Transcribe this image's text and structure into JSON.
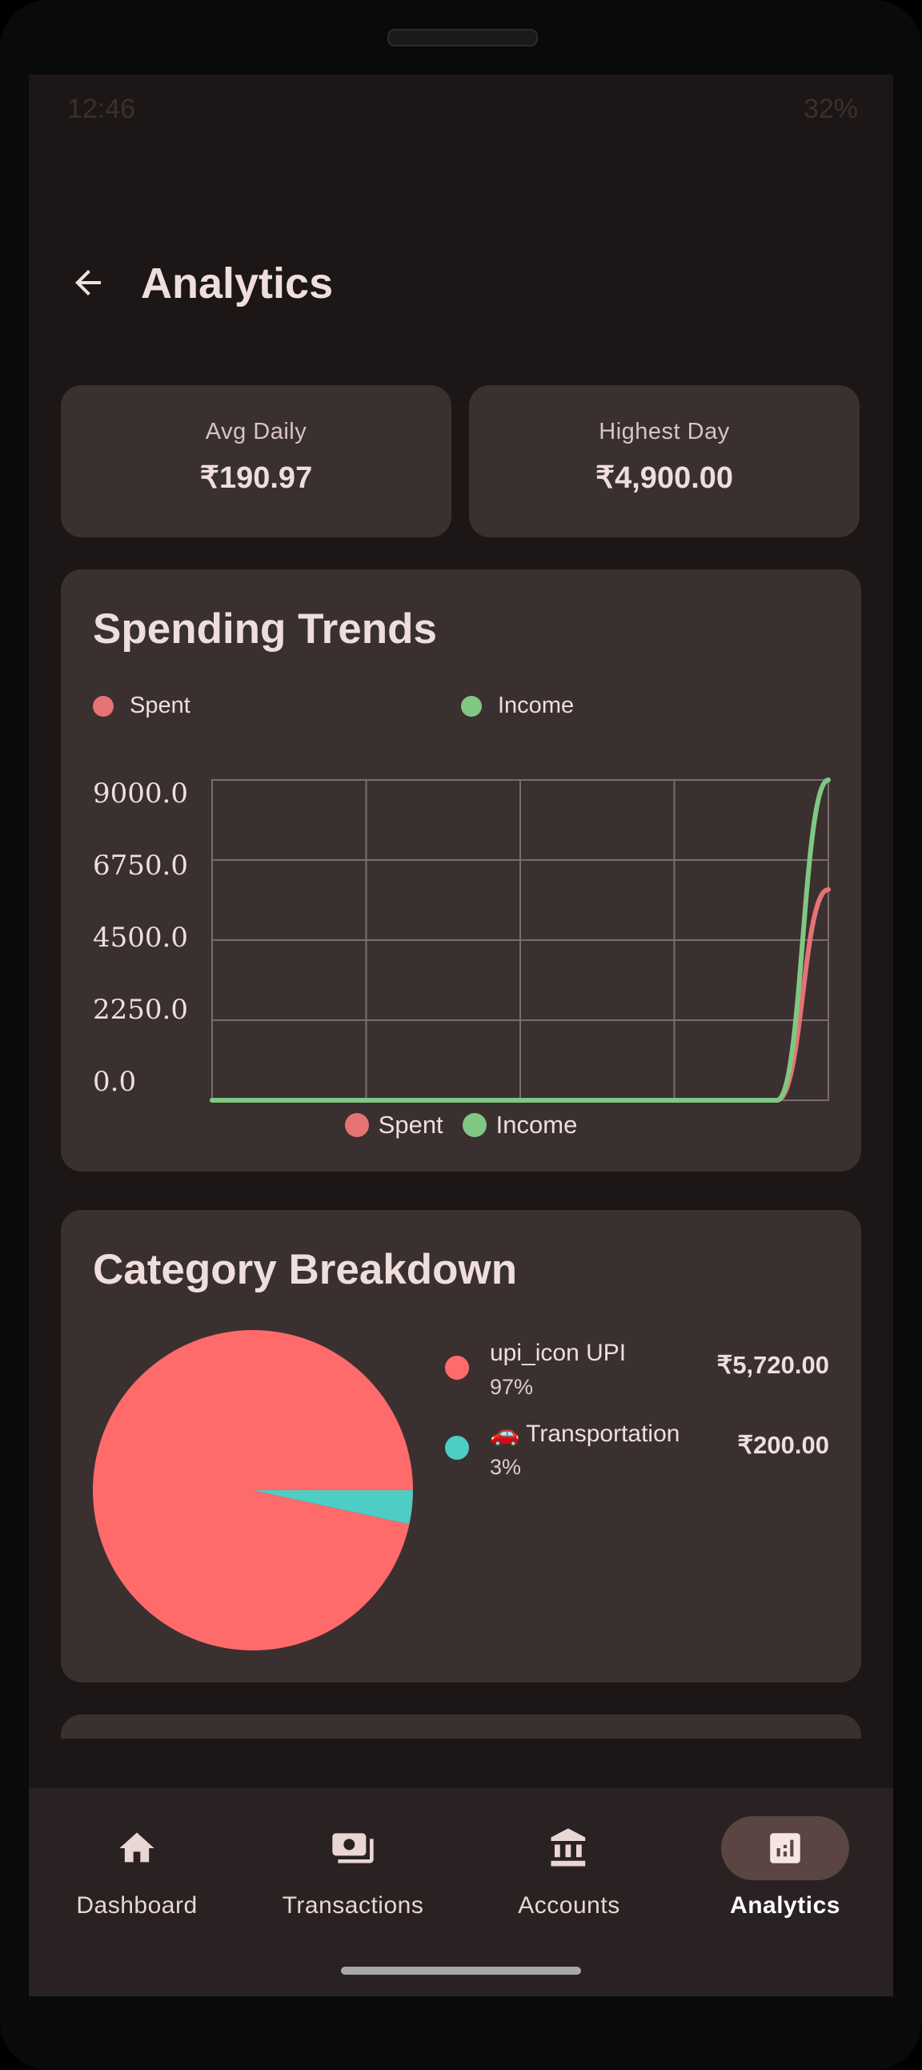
{
  "status_bar": {
    "time": "12:46",
    "battery": "32%"
  },
  "header": {
    "title": "Analytics",
    "back_icon": "arrow-back-icon"
  },
  "stats": [
    {
      "label": "Avg Daily",
      "value": "₹190.97"
    },
    {
      "label": "Highest Day",
      "value": "₹4,900.00"
    }
  ],
  "spending_trends": {
    "title": "Spending Trends",
    "legend_top": [
      {
        "label": "Spent",
        "color": "#e57373"
      },
      {
        "label": "Income",
        "color": "#81c784"
      }
    ],
    "legend_bottom": [
      {
        "label": "Spent",
        "color": "#e57373"
      },
      {
        "label": "Income",
        "color": "#81c784"
      }
    ]
  },
  "chart_data": {
    "type": "line",
    "title": "Spending Trends",
    "xlabel": "",
    "ylabel": "",
    "ylim": [
      0,
      9000
    ],
    "y_ticks": [
      "9000.0",
      "6750.0",
      "4500.0",
      "2250.0",
      "0.0"
    ],
    "x": [
      0,
      1,
      2,
      3,
      4,
      5,
      6,
      7,
      8,
      9,
      10,
      11,
      12
    ],
    "series": [
      {
        "name": "Spent",
        "color": "#e57373",
        "values": [
          0,
          0,
          0,
          0,
          0,
          0,
          0,
          0,
          0,
          0,
          0,
          0,
          5920
        ]
      },
      {
        "name": "Income",
        "color": "#81c784",
        "values": [
          0,
          0,
          0,
          0,
          0,
          0,
          0,
          0,
          0,
          0,
          0,
          0,
          9000
        ]
      }
    ],
    "grid": true,
    "legend": "top and bottom"
  },
  "category_breakdown": {
    "title": "Category Breakdown",
    "items": [
      {
        "name": "upi_icon UPI",
        "percent": "97%",
        "amount": "₹5,720.00",
        "color": "#ff6b6b",
        "share": 0.966
      },
      {
        "name": "🚗 Transportation",
        "percent": "3%",
        "amount": "₹200.00",
        "color": "#4ecdc4",
        "share": 0.034
      }
    ]
  },
  "nav": [
    {
      "label": "Dashboard",
      "icon": "home-icon",
      "active": false
    },
    {
      "label": "Transactions",
      "icon": "money-icon",
      "active": false
    },
    {
      "label": "Accounts",
      "icon": "bank-icon",
      "active": false
    },
    {
      "label": "Analytics",
      "icon": "analytics-icon",
      "active": true
    }
  ]
}
